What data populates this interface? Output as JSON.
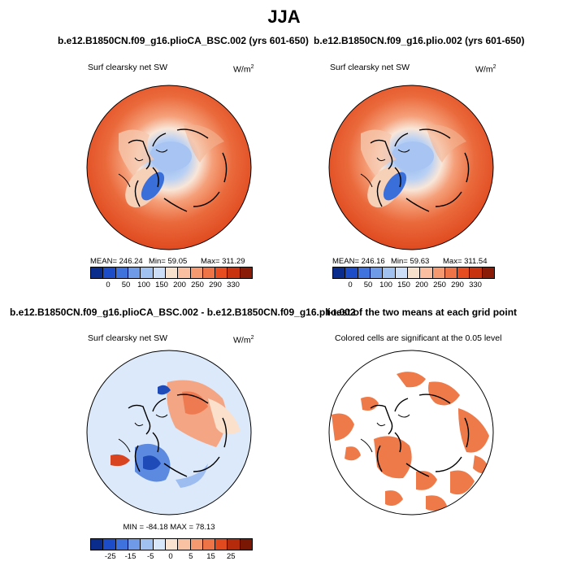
{
  "season": "JJA",
  "panels": [
    {
      "title": "b.e12.B1850CN.f09_g16.plioCA_BSC.002 (yrs 601-650)",
      "variable": "Surf clearsky net SW",
      "units": "W/m",
      "units_sup": "2",
      "stats": {
        "mean": "MEAN= 246.24",
        "min": "Min=  59.05",
        "max": "Max= 311.29"
      },
      "colorbar": {
        "colors": [
          "#0a2c8c",
          "#1c4cc8",
          "#3f72dc",
          "#6f9ae8",
          "#a1c1f0",
          "#cddff8",
          "#f7e0cc",
          "#f9bfa0",
          "#f59a70",
          "#ee7448",
          "#e64c20",
          "#c8320e",
          "#8a1b06"
        ],
        "ticks": [
          "0",
          "50",
          "100",
          "150",
          "200",
          "250",
          "290",
          "330"
        ]
      }
    },
    {
      "title": "b.e12.B1850CN.f09_g16.plio.002 (yrs 601-650)",
      "variable": "Surf clearsky net SW",
      "units": "W/m",
      "units_sup": "2",
      "stats": {
        "mean": "MEAN= 246.16",
        "min": "Min=  59.63",
        "max": "Max= 311.54"
      },
      "colorbar": {
        "colors": [
          "#0a2c8c",
          "#1c4cc8",
          "#3f72dc",
          "#6f9ae8",
          "#a1c1f0",
          "#cddff8",
          "#f7e0cc",
          "#f9bfa0",
          "#f59a70",
          "#ee7448",
          "#e64c20",
          "#c8320e",
          "#8a1b06"
        ],
        "ticks": [
          "0",
          "50",
          "100",
          "150",
          "200",
          "250",
          "290",
          "330"
        ]
      }
    },
    {
      "title": "b.e12.B1850CN.f09_g16.plioCA_BSC.002 - b.e12.B1850CN.f09_g16.plio.002",
      "variable": "Surf clearsky net SW",
      "units": "W/m",
      "units_sup": "2",
      "stats": {
        "minmax": "MIN = -84.18  MAX =  78.13"
      },
      "colorbar": {
        "colors": [
          "#0a2c8c",
          "#1c4cc8",
          "#3f72dc",
          "#6f9ae8",
          "#a1c1f0",
          "#d8e8fa",
          "#fbe3d2",
          "#f9c2a2",
          "#f59a70",
          "#ee7448",
          "#e04a1e",
          "#b52a0a",
          "#7a1604"
        ],
        "ticks": [
          "-25",
          "-15",
          "-5",
          "0",
          "5",
          "15",
          "25"
        ]
      }
    },
    {
      "title": "t-test of the two means at each grid point",
      "variable": "Colored cells are significant at the 0.05 level"
    }
  ]
}
